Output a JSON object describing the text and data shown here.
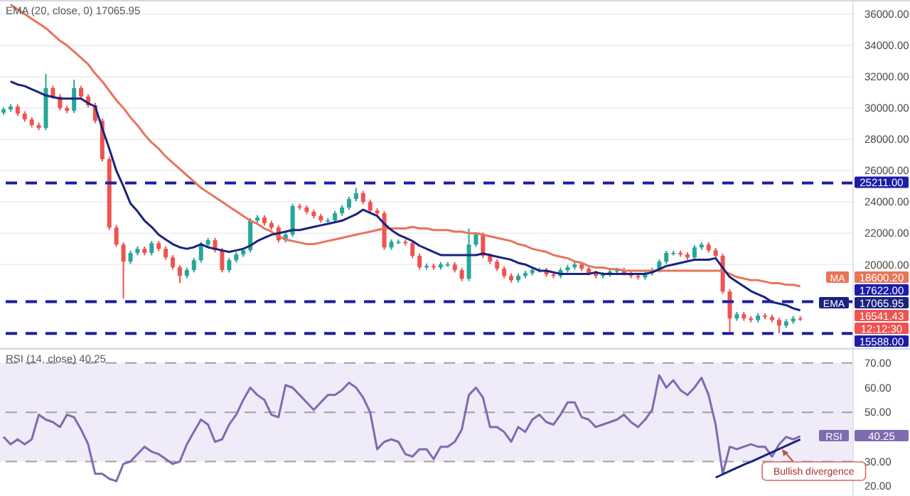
{
  "chart_data": [
    {
      "type": "candlestick",
      "tick_labels": "y",
      "grid": "y",
      "ylim": [
        14650,
        36900
      ],
      "yticks": [
        {
          "value": 20000,
          "label": "20000.00"
        },
        {
          "value": 22000,
          "label": "22000.00"
        },
        {
          "value": 24000,
          "label": "24000.00"
        },
        {
          "value": 26000,
          "label": "26000.00"
        },
        {
          "value": 28000,
          "label": "28000.00"
        },
        {
          "value": 30000,
          "label": "30000.00"
        },
        {
          "value": 32000,
          "label": "32000.00"
        },
        {
          "value": 34000,
          "label": "34000.00"
        },
        {
          "value": 36000,
          "label": "36000.00"
        }
      ],
      "categories": [
        null,
        null,
        null,
        null,
        null,
        null,
        null,
        null,
        null,
        null,
        null,
        null,
        null,
        null,
        null,
        null,
        null,
        null,
        null,
        null,
        null,
        null,
        null,
        null,
        null,
        null,
        null,
        null,
        null,
        null,
        null,
        null,
        null,
        null,
        null,
        null,
        null,
        null,
        null,
        null,
        null,
        null,
        null,
        null,
        null,
        null,
        null,
        null,
        null,
        null,
        null,
        null,
        null,
        null,
        null,
        null,
        null,
        null,
        null,
        null,
        null,
        null,
        null,
        null,
        null,
        null,
        null,
        null,
        null,
        null,
        null,
        null,
        null,
        null,
        null,
        null,
        null,
        null,
        null,
        null,
        null,
        null,
        null,
        null,
        null,
        null,
        null,
        null,
        null,
        null,
        null,
        null,
        null,
        null,
        null,
        null,
        null,
        null,
        null,
        null,
        null,
        null,
        null,
        null,
        null,
        null,
        null,
        null,
        null,
        null,
        null,
        null,
        null,
        null
      ],
      "ohlc": [
        [
          29700,
          30060,
          29550,
          29910
        ],
        [
          29910,
          30240,
          29760,
          30090
        ],
        [
          30090,
          30240,
          29490,
          29640
        ],
        [
          29640,
          29790,
          29120,
          29270
        ],
        [
          29270,
          29420,
          28760,
          28910
        ],
        [
          28910,
          29060,
          28580,
          28730
        ],
        [
          28730,
          32180,
          28580,
          31270
        ],
        [
          31270,
          31420,
          30580,
          30730
        ],
        [
          30730,
          30880,
          29850,
          30000
        ],
        [
          30000,
          30150,
          29670,
          29820
        ],
        [
          29820,
          31800,
          29670,
          31270
        ],
        [
          31270,
          31420,
          30580,
          30730
        ],
        [
          30730,
          30880,
          30030,
          30180
        ],
        [
          30180,
          30330,
          29030,
          29180
        ],
        [
          29180,
          29330,
          26580,
          26730
        ],
        [
          26730,
          26880,
          22210,
          22360
        ],
        [
          22360,
          22510,
          21120,
          21270
        ],
        [
          21270,
          21420,
          17820,
          20180
        ],
        [
          20180,
          20880,
          20030,
          20730
        ],
        [
          20730,
          21150,
          20580,
          21000
        ],
        [
          21000,
          21150,
          20580,
          20730
        ],
        [
          20730,
          21510,
          20580,
          21360
        ],
        [
          21360,
          21510,
          20850,
          21000
        ],
        [
          21000,
          21150,
          20300,
          20450
        ],
        [
          20450,
          20600,
          19670,
          19820
        ],
        [
          19820,
          19970,
          18800,
          19270
        ],
        [
          19270,
          19790,
          19120,
          19640
        ],
        [
          19640,
          20420,
          19490,
          20270
        ],
        [
          20270,
          21420,
          20120,
          21270
        ],
        [
          21270,
          21700,
          21120,
          21550
        ],
        [
          21550,
          21700,
          20760,
          20910
        ],
        [
          20910,
          21060,
          19490,
          19640
        ],
        [
          19640,
          20420,
          19490,
          20270
        ],
        [
          20270,
          20790,
          20120,
          20640
        ],
        [
          20640,
          21060,
          20490,
          20910
        ],
        [
          20910,
          22970,
          20760,
          22820
        ],
        [
          22820,
          23150,
          22670,
          23000
        ],
        [
          23000,
          23150,
          22490,
          22640
        ],
        [
          22640,
          22790,
          22210,
          22360
        ],
        [
          22360,
          22510,
          21400,
          21550
        ],
        [
          21550,
          22060,
          21400,
          21910
        ],
        [
          21910,
          23880,
          21760,
          23730
        ],
        [
          23730,
          23880,
          23490,
          23640
        ],
        [
          23640,
          23790,
          23210,
          23360
        ],
        [
          23360,
          23510,
          22940,
          23090
        ],
        [
          23090,
          23240,
          22670,
          22820
        ],
        [
          22820,
          22970,
          22670,
          22820
        ],
        [
          22820,
          23420,
          22670,
          23270
        ],
        [
          23270,
          23790,
          23120,
          23640
        ],
        [
          23640,
          24330,
          23490,
          24180
        ],
        [
          24180,
          24900,
          24030,
          24550
        ],
        [
          24550,
          24700,
          23850,
          24000
        ],
        [
          24000,
          24150,
          23300,
          23450
        ],
        [
          23450,
          23600,
          23120,
          23270
        ],
        [
          23270,
          23420,
          20940,
          21090
        ],
        [
          21090,
          21600,
          20940,
          21450
        ],
        [
          21450,
          21600,
          21300,
          21450
        ],
        [
          21450,
          21600,
          21210,
          21360
        ],
        [
          21360,
          21510,
          20400,
          20550
        ],
        [
          20550,
          20700,
          19670,
          19820
        ],
        [
          19820,
          20060,
          19670,
          19910
        ],
        [
          19910,
          20060,
          19670,
          19820
        ],
        [
          19820,
          20150,
          19670,
          20000
        ],
        [
          20000,
          20150,
          19850,
          20000
        ],
        [
          20000,
          20150,
          19490,
          19640
        ],
        [
          19640,
          19790,
          18940,
          19090
        ],
        [
          19090,
          22300,
          18940,
          21270
        ],
        [
          21270,
          22060,
          21120,
          21910
        ],
        [
          21910,
          22060,
          20400,
          20550
        ],
        [
          20550,
          20700,
          20030,
          20180
        ],
        [
          20180,
          20330,
          19580,
          19730
        ],
        [
          19730,
          19880,
          19120,
          19270
        ],
        [
          19270,
          19420,
          18850,
          19000
        ],
        [
          19000,
          19420,
          18850,
          19270
        ],
        [
          19270,
          19600,
          19120,
          19450
        ],
        [
          19450,
          19790,
          19300,
          19640
        ],
        [
          19640,
          19790,
          19490,
          19640
        ],
        [
          19640,
          19790,
          19210,
          19360
        ],
        [
          19360,
          19510,
          19120,
          19270
        ],
        [
          19270,
          19790,
          19120,
          19640
        ],
        [
          19640,
          19970,
          19490,
          19820
        ],
        [
          19820,
          20150,
          19670,
          20000
        ],
        [
          20000,
          20150,
          19580,
          19730
        ],
        [
          19730,
          19880,
          19300,
          19450
        ],
        [
          19450,
          19600,
          19120,
          19270
        ],
        [
          19270,
          19510,
          19120,
          19360
        ],
        [
          19360,
          19700,
          19210,
          19550
        ],
        [
          19550,
          19790,
          19400,
          19640
        ],
        [
          19640,
          19790,
          19300,
          19450
        ],
        [
          19450,
          19600,
          19120,
          19270
        ],
        [
          19270,
          19420,
          19030,
          19180
        ],
        [
          19180,
          19600,
          19030,
          19450
        ],
        [
          19450,
          19790,
          19300,
          19640
        ],
        [
          19640,
          20330,
          19490,
          20180
        ],
        [
          20180,
          20880,
          20030,
          20730
        ],
        [
          20730,
          20880,
          20580,
          20730
        ],
        [
          20730,
          20880,
          20490,
          20640
        ],
        [
          20640,
          20790,
          20300,
          20450
        ],
        [
          20450,
          21240,
          20300,
          21090
        ],
        [
          21090,
          21420,
          20940,
          21270
        ],
        [
          21270,
          21420,
          20760,
          20910
        ],
        [
          20910,
          21060,
          20400,
          20550
        ],
        [
          20550,
          20700,
          18120,
          18270
        ],
        [
          18270,
          18420,
          15700,
          16550
        ],
        [
          16550,
          16970,
          16400,
          16820
        ],
        [
          16820,
          16970,
          16400,
          16550
        ],
        [
          16550,
          16700,
          16300,
          16450
        ],
        [
          16450,
          16880,
          16300,
          16730
        ],
        [
          16730,
          16880,
          16490,
          16640
        ],
        [
          16640,
          16790,
          16300,
          16450
        ],
        [
          16450,
          16600,
          15600,
          16090
        ],
        [
          16090,
          16510,
          15940,
          16360
        ],
        [
          16360,
          16700,
          16210,
          16550
        ],
        [
          16550,
          16700,
          16390,
          16541.43
        ]
      ],
      "colors": [
        "#26a69a",
        "#26a69a",
        "#ef5350",
        "#ef5350",
        "#ef5350",
        "#ef5350",
        "#26a69a",
        "#ef5350",
        "#ef5350",
        "#ef5350",
        "#26a69a",
        "#ef5350",
        "#ef5350",
        "#ef5350",
        "#ef5350",
        "#ef5350",
        "#ef5350",
        "#ef5350",
        "#26a69a",
        "#26a69a",
        "#ef5350",
        "#26a69a",
        "#ef5350",
        "#ef5350",
        "#ef5350",
        "#ef5350",
        "#26a69a",
        "#26a69a",
        "#26a69a",
        "#26a69a",
        "#ef5350",
        "#ef5350",
        "#26a69a",
        "#26a69a",
        "#26a69a",
        "#26a69a",
        "#26a69a",
        "#ef5350",
        "#ef5350",
        "#ef5350",
        "#26a69a",
        "#26a69a",
        "#ef5350",
        "#ef5350",
        "#ef5350",
        "#ef5350",
        "#26a69a",
        "#26a69a",
        "#26a69a",
        "#26a69a",
        "#26a69a",
        "#ef5350",
        "#ef5350",
        "#ef5350",
        "#ef5350",
        "#26a69a",
        "#26a69a",
        "#ef5350",
        "#ef5350",
        "#ef5350",
        "#26a69a",
        "#ef5350",
        "#26a69a",
        "#26a69a",
        "#ef5350",
        "#ef5350",
        "#26a69a",
        "#26a69a",
        "#ef5350",
        "#ef5350",
        "#ef5350",
        "#ef5350",
        "#ef5350",
        "#26a69a",
        "#26a69a",
        "#26a69a",
        "#26a69a",
        "#ef5350",
        "#ef5350",
        "#26a69a",
        "#26a69a",
        "#26a69a",
        "#ef5350",
        "#ef5350",
        "#ef5350",
        "#26a69a",
        "#26a69a",
        "#26a69a",
        "#ef5350",
        "#ef5350",
        "#ef5350",
        "#26a69a",
        "#26a69a",
        "#26a69a",
        "#26a69a",
        "#26a69a",
        "#ef5350",
        "#ef5350",
        "#26a69a",
        "#26a69a",
        "#ef5350",
        "#ef5350",
        "#ef5350",
        "#ef5350",
        "#26a69a",
        "#ef5350",
        "#ef5350",
        "#26a69a",
        "#ef5350",
        "#ef5350",
        "#ef5350",
        "#26a69a",
        "#26a69a",
        "#ef5350"
      ],
      "series": [
        {
          "name": "MA",
          "type": "line",
          "color": "#e8745a",
          "values": [
            null,
            36600,
            36300,
            36000,
            35700,
            35400,
            35100,
            34700,
            34300,
            34000,
            33600,
            33200,
            32800,
            32200,
            31700,
            31100,
            30500,
            30000,
            29400,
            28900,
            28300,
            27800,
            27400,
            26900,
            26500,
            26100,
            25700,
            25300,
            24900,
            24600,
            24300,
            24000,
            23700,
            23400,
            23100,
            22800,
            22600,
            22300,
            22100,
            21800,
            21600,
            21500,
            21400,
            21300,
            21300,
            21400,
            21500,
            21600,
            21700,
            21800,
            21900,
            22000,
            22100,
            22200,
            22300,
            22300,
            22300,
            22300,
            22400,
            22300,
            22300,
            22200,
            22200,
            22200,
            22100,
            22100,
            22000,
            22000,
            21900,
            21800,
            21700,
            21600,
            21500,
            21300,
            21200,
            21000,
            20900,
            20800,
            20600,
            20500,
            20400,
            20200,
            20100,
            19900,
            19800,
            19800,
            19700,
            19700,
            19600,
            19600,
            19600,
            19600,
            19600,
            19600,
            19600,
            19600,
            19600,
            19600,
            19600,
            19600,
            19600,
            19600,
            19600,
            19400,
            19200,
            19100,
            19000,
            19000,
            18900,
            18800,
            18800,
            18700,
            18700,
            18600.2
          ]
        },
        {
          "name": "EMA",
          "type": "line",
          "color": "#1a237e",
          "values": [
            null,
            31700,
            31500,
            31400,
            31200,
            31000,
            30800,
            30700,
            30600,
            30600,
            30600,
            30600,
            30300,
            30100,
            28700,
            27400,
            26000,
            25000,
            23900,
            23400,
            22800,
            22400,
            21900,
            21600,
            21300,
            21100,
            21000,
            21100,
            21300,
            21100,
            21000,
            20900,
            20800,
            20900,
            21000,
            21200,
            21500,
            21700,
            21900,
            22000,
            22100,
            22200,
            22200,
            22300,
            22400,
            22500,
            22600,
            22700,
            22800,
            23000,
            23200,
            23500,
            23300,
            23100,
            22600,
            22200,
            21900,
            21700,
            21500,
            21200,
            21000,
            20800,
            20600,
            20600,
            20600,
            20600,
            20600,
            20600,
            20700,
            20600,
            20500,
            20400,
            20300,
            20100,
            20000,
            19800,
            19600,
            19600,
            19500,
            19400,
            19400,
            19400,
            19400,
            19400,
            19500,
            19400,
            19400,
            19400,
            19400,
            19400,
            19400,
            19400,
            19500,
            19700,
            19900,
            20000,
            20100,
            20200,
            20300,
            20300,
            20300,
            20400,
            19800,
            19200,
            18900,
            18600,
            18300,
            18100,
            17900,
            17600,
            17500,
            17400,
            17200,
            17065.95
          ]
        }
      ],
      "ref_lines": [
        {
          "axis": "y",
          "value": 25211,
          "label": "25211.00",
          "color": "#1c1ca8",
          "line_style": "dashed"
        },
        {
          "axis": "y",
          "value": 17622,
          "label": "17622.00",
          "color": "#1c1ca8",
          "line_style": "dashed"
        },
        {
          "axis": "y",
          "value": 15588,
          "label": "15588.00",
          "color": "#1c1ca8",
          "line_style": "dashed"
        }
      ],
      "annotations": [
        "EMA (20, close, 0) 17065.95",
        "18600.20",
        "17065.95",
        "16541.43",
        "12:12:30"
      ]
    },
    {
      "type": "line",
      "tick_labels": "y",
      "ylim": [
        16,
        76
      ],
      "yticks": [
        {
          "value": 20,
          "label": "20.00"
        },
        {
          "value": 30,
          "label": "30.00"
        },
        {
          "value": 50,
          "label": "50.00"
        },
        {
          "value": 60,
          "label": "60.00"
        },
        {
          "value": 70,
          "label": "70.00"
        }
      ],
      "categories": [
        null,
        null,
        null,
        null,
        null,
        null,
        null,
        null,
        null,
        null,
        null,
        null,
        null,
        null,
        null,
        null,
        null,
        null,
        null,
        null,
        null,
        null,
        null,
        null,
        null,
        null,
        null,
        null,
        null,
        null,
        null,
        null,
        null,
        null,
        null,
        null,
        null,
        null,
        null,
        null,
        null,
        null,
        null,
        null,
        null,
        null,
        null,
        null,
        null,
        null,
        null,
        null,
        null,
        null,
        null,
        null,
        null,
        null,
        null,
        null,
        null,
        null,
        null,
        null,
        null,
        null,
        null,
        null,
        null,
        null,
        null,
        null,
        null,
        null,
        null,
        null,
        null,
        null,
        null,
        null,
        null,
        null,
        null,
        null,
        null,
        null,
        null,
        null,
        null,
        null,
        null,
        null,
        null,
        null,
        null,
        null,
        null,
        null,
        null,
        null,
        null,
        null,
        null,
        null,
        null,
        null,
        null,
        null,
        null,
        null,
        null,
        null,
        null,
        null
      ],
      "series": [
        {
          "name": "RSI",
          "color": "#7e6bb0",
          "values": [
            40,
            37,
            39,
            37,
            39,
            49,
            47,
            46,
            44,
            49,
            48,
            43,
            37,
            25,
            25,
            23,
            22,
            29,
            30,
            33,
            36,
            34,
            33,
            31,
            29,
            30,
            37,
            42,
            47,
            45,
            38,
            39,
            45,
            49,
            55,
            60,
            57,
            55,
            49,
            48,
            61,
            60,
            57,
            54,
            51,
            54,
            57,
            57,
            59,
            62,
            60,
            56,
            50,
            35,
            38,
            39,
            38,
            33,
            32,
            35,
            35,
            31,
            36,
            36,
            38,
            43,
            57,
            60,
            56,
            44,
            44,
            42,
            38,
            44,
            42,
            47,
            49,
            46,
            45,
            49,
            54,
            54,
            48,
            47,
            44,
            45,
            46,
            47,
            49,
            46,
            44,
            47,
            51,
            65,
            60,
            63,
            59,
            57,
            60,
            64,
            57,
            45,
            25,
            36,
            35,
            36,
            37,
            36,
            36,
            32,
            37,
            40,
            39,
            40.25
          ]
        },
        {
          "color": "#1a237e",
          "values": [
            null,
            null,
            null,
            null,
            null,
            null,
            null,
            null,
            null,
            null,
            null,
            null,
            null,
            null,
            null,
            null,
            null,
            null,
            null,
            null,
            null,
            null,
            null,
            null,
            null,
            null,
            null,
            null,
            null,
            null,
            null,
            null,
            null,
            null,
            null,
            null,
            null,
            null,
            null,
            null,
            null,
            null,
            null,
            null,
            null,
            null,
            null,
            null,
            null,
            null,
            null,
            null,
            null,
            null,
            null,
            null,
            null,
            null,
            null,
            null,
            null,
            null,
            null,
            null,
            null,
            null,
            null,
            null,
            null,
            null,
            null,
            null,
            null,
            null,
            null,
            null,
            null,
            null,
            null,
            null,
            null,
            null,
            null,
            null,
            null,
            null,
            null,
            null,
            null,
            null,
            null,
            null,
            null,
            null,
            null,
            null,
            null,
            null,
            null,
            null,
            null,
            23.5,
            24.8,
            26.1,
            27.4,
            28.7,
            29.9,
            31.2,
            32.5,
            33.8,
            35.1,
            36.4,
            37.7,
            39.0
          ]
        }
      ],
      "ref_lines": [
        {
          "axis": "y",
          "value": 70,
          "color": "#a0a0a0",
          "line_style": "dashed"
        },
        {
          "axis": "y",
          "value": 50,
          "color": "#a0a0a0",
          "line_style": "dashed"
        },
        {
          "axis": "y",
          "value": 30,
          "color": "#a0a0a0",
          "line_style": "dashed"
        }
      ],
      "bands": [
        {
          "axis": "y",
          "from": 30,
          "to": 70,
          "color": "#efebf8"
        }
      ],
      "annotations": [
        "RSI (14, close) 40.25",
        "40.25",
        "Bullish divergence"
      ]
    }
  ]
}
